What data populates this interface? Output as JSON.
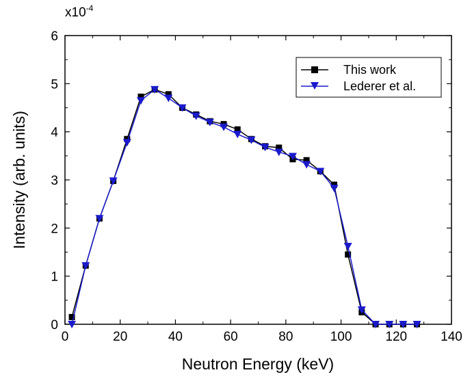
{
  "chart_data": {
    "type": "line",
    "xlabel": "Neutron Energy (keV)",
    "ylabel": "Intensity (arb. units)",
    "y_multiplier_label": {
      "base": "x10",
      "exponent": "-4"
    },
    "xlim": [
      0,
      140
    ],
    "ylim": [
      0,
      6
    ],
    "x_ticks": [
      0,
      20,
      40,
      60,
      80,
      100,
      120,
      140
    ],
    "y_ticks": [
      0,
      1,
      2,
      3,
      4,
      5,
      6
    ],
    "x_tick_labels": [
      "0",
      "20",
      "40",
      "60",
      "80",
      "100",
      "120",
      "140"
    ],
    "y_tick_labels": [
      "0",
      "1",
      "2",
      "3",
      "4",
      "5",
      "6"
    ],
    "grid": false,
    "legend_position": "top-right",
    "colors": {
      "this_work": "#000000",
      "lederer": "#1a1acc"
    },
    "series": [
      {
        "name": "This work",
        "marker": "square",
        "color": "#000000",
        "x": [
          2.5,
          7.5,
          12.5,
          17.5,
          22.5,
          27.5,
          32.5,
          37.5,
          42.5,
          47.5,
          52.5,
          57.5,
          62.5,
          67.5,
          72.5,
          77.5,
          82.5,
          87.5,
          92.5,
          97.5,
          102.5,
          107.5,
          112.5,
          117.5,
          122.5,
          127.5
        ],
        "y": [
          0.15,
          1.22,
          2.2,
          2.98,
          3.85,
          4.73,
          4.88,
          4.78,
          4.5,
          4.36,
          4.22,
          4.16,
          4.05,
          3.85,
          3.7,
          3.67,
          3.43,
          3.41,
          3.18,
          2.9,
          1.45,
          0.25,
          0.0,
          0.0,
          0.0,
          0.0
        ]
      },
      {
        "name": "Lederer et al.",
        "marker": "triangle-down",
        "color": "#1a1acc",
        "x": [
          2.5,
          7.5,
          12.5,
          17.5,
          22.5,
          27.5,
          32.5,
          37.5,
          42.5,
          47.5,
          52.5,
          57.5,
          62.5,
          67.5,
          72.5,
          77.5,
          82.5,
          87.5,
          92.5,
          97.5,
          102.5,
          107.5,
          112.5,
          117.5,
          122.5,
          127.5
        ],
        "y": [
          0.0,
          1.22,
          2.2,
          2.98,
          3.78,
          4.65,
          4.88,
          4.7,
          4.5,
          4.33,
          4.2,
          4.1,
          3.95,
          3.83,
          3.68,
          3.58,
          3.49,
          3.32,
          3.18,
          2.83,
          1.62,
          0.3,
          0.0,
          0.0,
          0.0,
          0.0
        ]
      }
    ]
  }
}
